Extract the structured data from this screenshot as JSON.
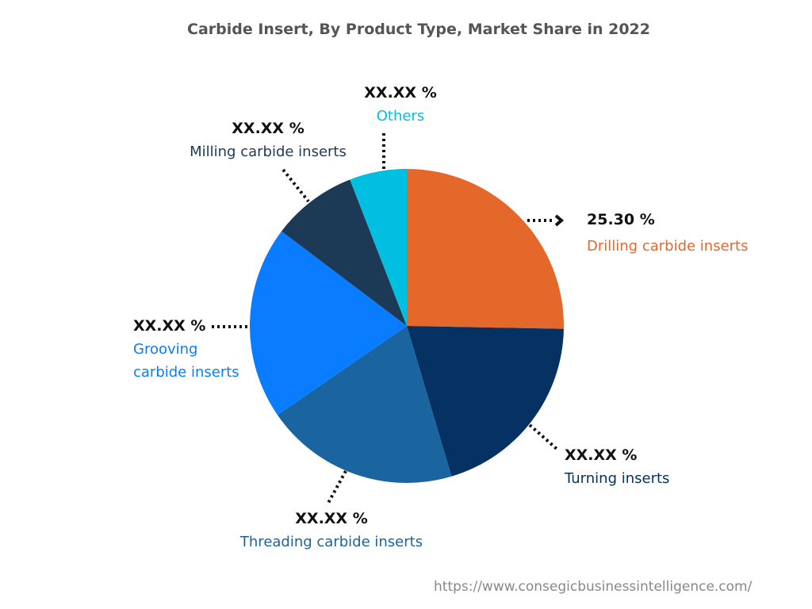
{
  "chart_data": {
    "type": "pie",
    "title": "Carbide Insert, By Product Type, Market Share in 2022",
    "start_angle": "12 o'clock",
    "direction": "clockwise",
    "slices": [
      {
        "name": "Drilling carbide inserts",
        "value": 25.3,
        "display_value": "25.30 %",
        "color": "#E4682A"
      },
      {
        "name": "Turning inserts",
        "value": 20.1,
        "display_value": "XX.XX %",
        "color": "#053263"
      },
      {
        "name": "Threading carbide inserts",
        "value": 20.0,
        "display_value": "XX.XX %",
        "color": "#1A64A0"
      },
      {
        "name": "Grooving carbide inserts",
        "value": 19.9,
        "display_value": "XX.XX %",
        "color": "#0A7CFF"
      },
      {
        "name": "Milling carbide inserts",
        "value": 8.8,
        "display_value": "XX.XX %",
        "color": "#1C3A56"
      },
      {
        "name": "Others",
        "value": 5.9,
        "display_value": "XX.XX %",
        "color": "#00BFE0"
      }
    ]
  },
  "source": "https://www.consegicbusinessintelligence.com/"
}
